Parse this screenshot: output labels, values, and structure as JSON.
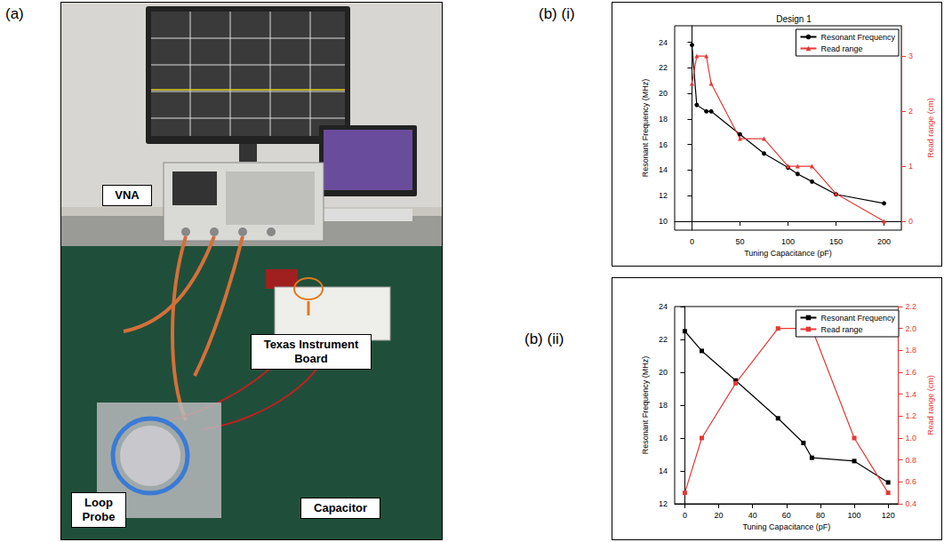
{
  "photo": {
    "panel": "(a)",
    "labels": [
      "VNA",
      "Texas Instrument Board",
      "Loop Probe",
      "Capacitor"
    ]
  },
  "chart_data": [
    {
      "type": "line",
      "panel": "(b) (i)",
      "title": "Design 1",
      "x_label": "Tuning Capacitance (pF)",
      "y_label": "Resonant Frequency (MHz)",
      "y2_label": "Read range (cm)",
      "x": [
        0,
        5,
        15,
        20,
        50,
        75,
        100,
        110,
        125,
        150,
        200
      ],
      "series": [
        {
          "name": "Resonant Frequency",
          "color": "#000000",
          "marker": "circle",
          "values": [
            23.8,
            19.1,
            18.6,
            18.6,
            16.8,
            15.3,
            14.2,
            13.7,
            13.1,
            12.1,
            11.4
          ]
        },
        {
          "name": "Read range",
          "color": "#e53935",
          "marker": "triangle",
          "axis": "y2",
          "values": [
            2.5,
            3,
            3,
            2.5,
            1.5,
            1.5,
            1,
            1,
            1,
            0.5,
            0
          ]
        }
      ],
      "xlim": [
        -18,
        218
      ],
      "xticks": [
        0,
        50,
        100,
        150,
        200
      ],
      "ylim": [
        9.3,
        25.3
      ],
      "yticks": [
        10,
        12,
        14,
        16,
        18,
        20,
        22,
        24
      ],
      "y2lim": [
        -0.16,
        3.55
      ],
      "y2ticks": [
        0,
        1,
        2,
        3
      ],
      "legend": "upper right",
      "grid": false
    },
    {
      "type": "line",
      "panel": "(b) (ii)",
      "x_label": "Tuning Capacitance (pF)",
      "y_label": "Resonant Frequency (MHz)",
      "y2_label": "Read range (cm)",
      "x": [
        0,
        10,
        30,
        55,
        70,
        75,
        100,
        120
      ],
      "series": [
        {
          "name": "Resonant Frequency",
          "color": "#000000",
          "marker": "square",
          "values": [
            22.5,
            21.3,
            19.5,
            17.2,
            15.7,
            14.8,
            14.6,
            13.3
          ]
        },
        {
          "name": "Read range",
          "color": "#e53935",
          "marker": "square",
          "axis": "y2",
          "values": [
            0.5,
            1.0,
            1.5,
            2.0,
            2.0,
            2.0,
            1.0,
            0.5
          ]
        }
      ],
      "xlim": [
        -6,
        126
      ],
      "xticks": [
        0,
        20,
        40,
        60,
        80,
        100,
        120
      ],
      "ylim": [
        12,
        24
      ],
      "yticks": [
        12,
        14,
        16,
        18,
        20,
        22,
        24
      ],
      "y2lim": [
        0.4,
        2.2
      ],
      "y2ticks": [
        0.4,
        0.6,
        0.8,
        {
          "value": 1,
          "label": "1.0"
        },
        1.2,
        1.4,
        1.6,
        1.8,
        {
          "value": 2,
          "label": "2.0"
        },
        2.2
      ],
      "legend": "upper right",
      "grid": false
    }
  ]
}
